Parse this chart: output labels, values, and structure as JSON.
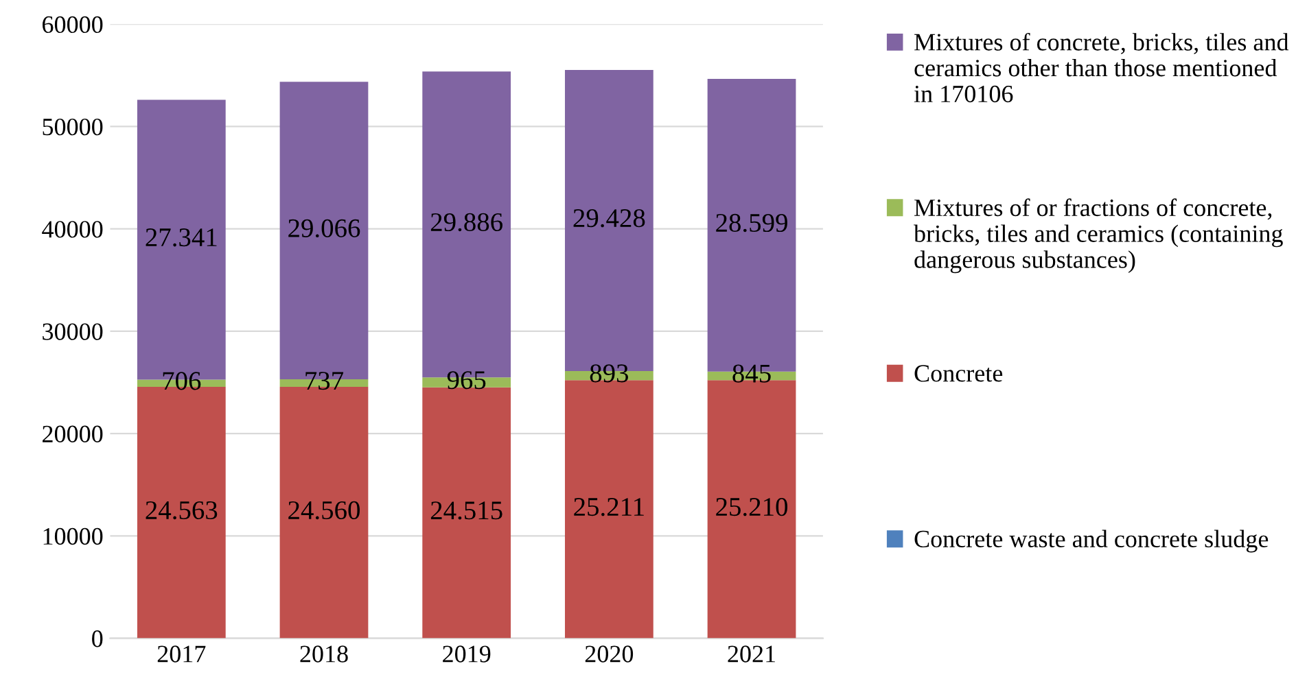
{
  "chart_data": {
    "type": "bar",
    "stacked": true,
    "categories": [
      "2017",
      "2018",
      "2019",
      "2020",
      "2021"
    ],
    "series": [
      {
        "name": "Concrete waste and concrete sludge",
        "color": "#4f81bd",
        "values": [
          0,
          0,
          0,
          0,
          0
        ],
        "value_labels": [
          null,
          null,
          null,
          null,
          null
        ]
      },
      {
        "name": "Concrete",
        "color": "#c0504d",
        "values": [
          24563,
          24560,
          24515,
          25211,
          25210
        ],
        "value_labels": [
          "24.563",
          "24.560",
          "24.515",
          "25.211",
          "25.210"
        ]
      },
      {
        "name": "Mixtures of or fractions of concrete, bricks, tiles and ceramics (containing dangerous substances)",
        "color": "#9bbb59",
        "values": [
          706,
          737,
          965,
          893,
          845
        ],
        "value_labels": [
          "706",
          "737",
          "965",
          "893",
          "845"
        ]
      },
      {
        "name": "Mixtures of concrete, bricks, tiles and ceramics other than those mentioned in 170106",
        "color": "#8064a2",
        "values": [
          27341,
          29066,
          29886,
          29428,
          28599
        ],
        "value_labels": [
          "27.341",
          "29.066",
          "29.886",
          "29.428",
          "28.599"
        ]
      }
    ],
    "ylim": [
      0,
      60000
    ],
    "yticks": [
      0,
      10000,
      20000,
      30000,
      40000,
      50000,
      60000
    ],
    "grid": "y",
    "legend": "right"
  }
}
